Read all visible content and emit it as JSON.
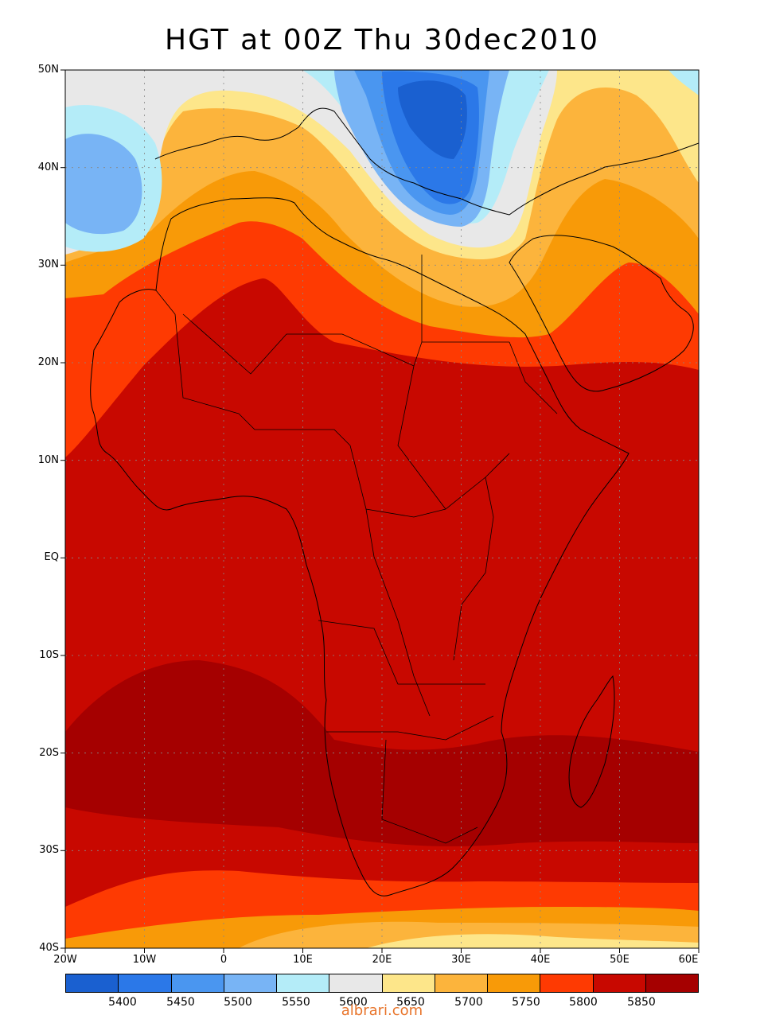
{
  "title": "HGT at 00Z Thu 30dec2010",
  "watermark": "albrari.com",
  "lat_labels": [
    "50N",
    "40N",
    "30N",
    "20N",
    "10N",
    "EQ",
    "10S",
    "20S",
    "30S",
    "40S"
  ],
  "lon_labels": [
    "20W",
    "10W",
    "0",
    "10E",
    "20E",
    "30E",
    "40E",
    "50E",
    "60E"
  ],
  "map_extent": {
    "lon_min": -20,
    "lon_max": 60,
    "lat_min": -40,
    "lat_max": 50
  },
  "colorbar": {
    "colors": [
      "#1a60d0",
      "#2b78e8",
      "#4a96f0",
      "#78b4f5",
      "#b4ecf8",
      "#e8e8e8",
      "#fde68a",
      "#fcb43c",
      "#f89a08",
      "#fe3a02",
      "#c80800",
      "#a50000"
    ],
    "labels": [
      "5400",
      "5450",
      "5500",
      "5550",
      "5600",
      "5650",
      "5700",
      "5750",
      "5800",
      "5850"
    ]
  }
}
